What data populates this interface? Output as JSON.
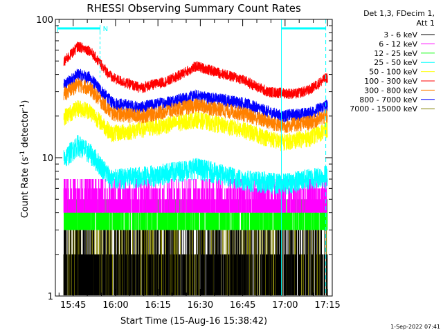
{
  "chart_data": {
    "type": "line",
    "title": "RHESSI Observing Summary Count Rates",
    "xlabel": "Start Time (15-Aug-16 15:38:42)",
    "ylabel": "Count Rate (s",
    "ylabel_sup": "-1",
    "ylabel_mid": " detector",
    "ylabel_sup2": "-1",
    "ylabel_end": ")",
    "yscale": "log",
    "ylim": [
      1,
      100
    ],
    "xlim_minutes": [
      0,
      98
    ],
    "x_ticks": [
      {
        "label": "15:45",
        "minute": 6.3
      },
      {
        "label": "16:00",
        "minute": 21.3
      },
      {
        "label": "16:15",
        "minute": 36.3
      },
      {
        "label": "16:30",
        "minute": 51.3
      },
      {
        "label": "16:45",
        "minute": 66.3
      },
      {
        "label": "17:00",
        "minute": 81.3
      },
      {
        "label": "17:15",
        "minute": 96.3
      }
    ],
    "y_ticks": [
      {
        "label": "1",
        "value": 1
      },
      {
        "label": "10",
        "value": 10
      },
      {
        "label": "100",
        "value": 100
      }
    ],
    "legend": {
      "placement": "right",
      "header": [
        "Det 1,3, FDecim 1,",
        "Att 1"
      ]
    },
    "annotations": {
      "night_marker": "N",
      "timestamp": "1-Sep-2022 07:41"
    },
    "series": [
      {
        "name": "3 - 6 keV",
        "color": "#000000",
        "knots": [
          [
            0,
            2.0
          ],
          [
            8,
            2.4
          ],
          [
            13,
            2.2
          ],
          [
            20,
            1.6
          ],
          [
            40,
            1.5
          ],
          [
            66,
            1.7
          ],
          [
            75,
            1.3
          ],
          [
            96,
            1.4
          ]
        ]
      },
      {
        "name": "6 - 12 keV",
        "color": "#ff00ff",
        "knots": [
          [
            0,
            5.5
          ],
          [
            8,
            7.5
          ],
          [
            13,
            6.5
          ],
          [
            20,
            5.0
          ],
          [
            50,
            5.5
          ],
          [
            66,
            5.0
          ],
          [
            96,
            5.5
          ]
        ]
      },
      {
        "name": "12 - 25 keV",
        "color": "#00ff00",
        "knots": [
          [
            0,
            5.0
          ],
          [
            8,
            6.0
          ],
          [
            13,
            5.5
          ],
          [
            20,
            3.8
          ],
          [
            40,
            4.2
          ],
          [
            66,
            3.6
          ],
          [
            75,
            3.2
          ],
          [
            96,
            3.8
          ]
        ]
      },
      {
        "name": "25 - 50 keV",
        "color": "#00ffff",
        "knots": [
          [
            0,
            8.5
          ],
          [
            8,
            12.5
          ],
          [
            13,
            10.5
          ],
          [
            20,
            7.0
          ],
          [
            35,
            7.5
          ],
          [
            50,
            8.5
          ],
          [
            66,
            7.0
          ],
          [
            80,
            6.5
          ],
          [
            96,
            7.5
          ]
        ]
      },
      {
        "name": "50 - 100 keV",
        "color": "#ffff00",
        "knots": [
          [
            0,
            18.0
          ],
          [
            8,
            23.0
          ],
          [
            12,
            22.0
          ],
          [
            20,
            15.0
          ],
          [
            30,
            16.0
          ],
          [
            50,
            19.0
          ],
          [
            66,
            16.0
          ],
          [
            80,
            13.0
          ],
          [
            90,
            14.0
          ],
          [
            96,
            16.0
          ]
        ]
      },
      {
        "name": "100 - 300 keV",
        "color": "#ff0000",
        "knots": [
          [
            0,
            42.0
          ],
          [
            8,
            64.0
          ],
          [
            12,
            60.0
          ],
          [
            20,
            38.0
          ],
          [
            30,
            32.0
          ],
          [
            40,
            36.0
          ],
          [
            50,
            46.0
          ],
          [
            60,
            40.0
          ],
          [
            66,
            37.0
          ],
          [
            75,
            30.0
          ],
          [
            85,
            29.0
          ],
          [
            90,
            31.0
          ],
          [
            96,
            38.0
          ]
        ]
      },
      {
        "name": "300 - 800 keV",
        "color": "#ff8000",
        "knots": [
          [
            0,
            26.0
          ],
          [
            8,
            34.0
          ],
          [
            12,
            32.0
          ],
          [
            20,
            21.0
          ],
          [
            30,
            20.0
          ],
          [
            50,
            24.0
          ],
          [
            66,
            21.0
          ],
          [
            80,
            17.0
          ],
          [
            90,
            18.0
          ],
          [
            96,
            20.0
          ]
        ]
      },
      {
        "name": "800 - 7000 keV",
        "color": "#0000ff",
        "knots": [
          [
            0,
            30.0
          ],
          [
            8,
            40.0
          ],
          [
            12,
            38.0
          ],
          [
            20,
            25.0
          ],
          [
            30,
            23.0
          ],
          [
            50,
            28.0
          ],
          [
            66,
            25.0
          ],
          [
            80,
            20.0
          ],
          [
            90,
            21.0
          ],
          [
            96,
            24.0
          ]
        ]
      },
      {
        "name": "7000 - 15000 keV",
        "color": "#808000",
        "knots": [
          [
            0,
            1.6
          ],
          [
            10,
            1.7
          ],
          [
            20,
            1.3
          ],
          [
            40,
            1.4
          ],
          [
            66,
            1.35
          ],
          [
            80,
            1.2
          ],
          [
            96,
            1.3
          ]
        ]
      }
    ]
  }
}
